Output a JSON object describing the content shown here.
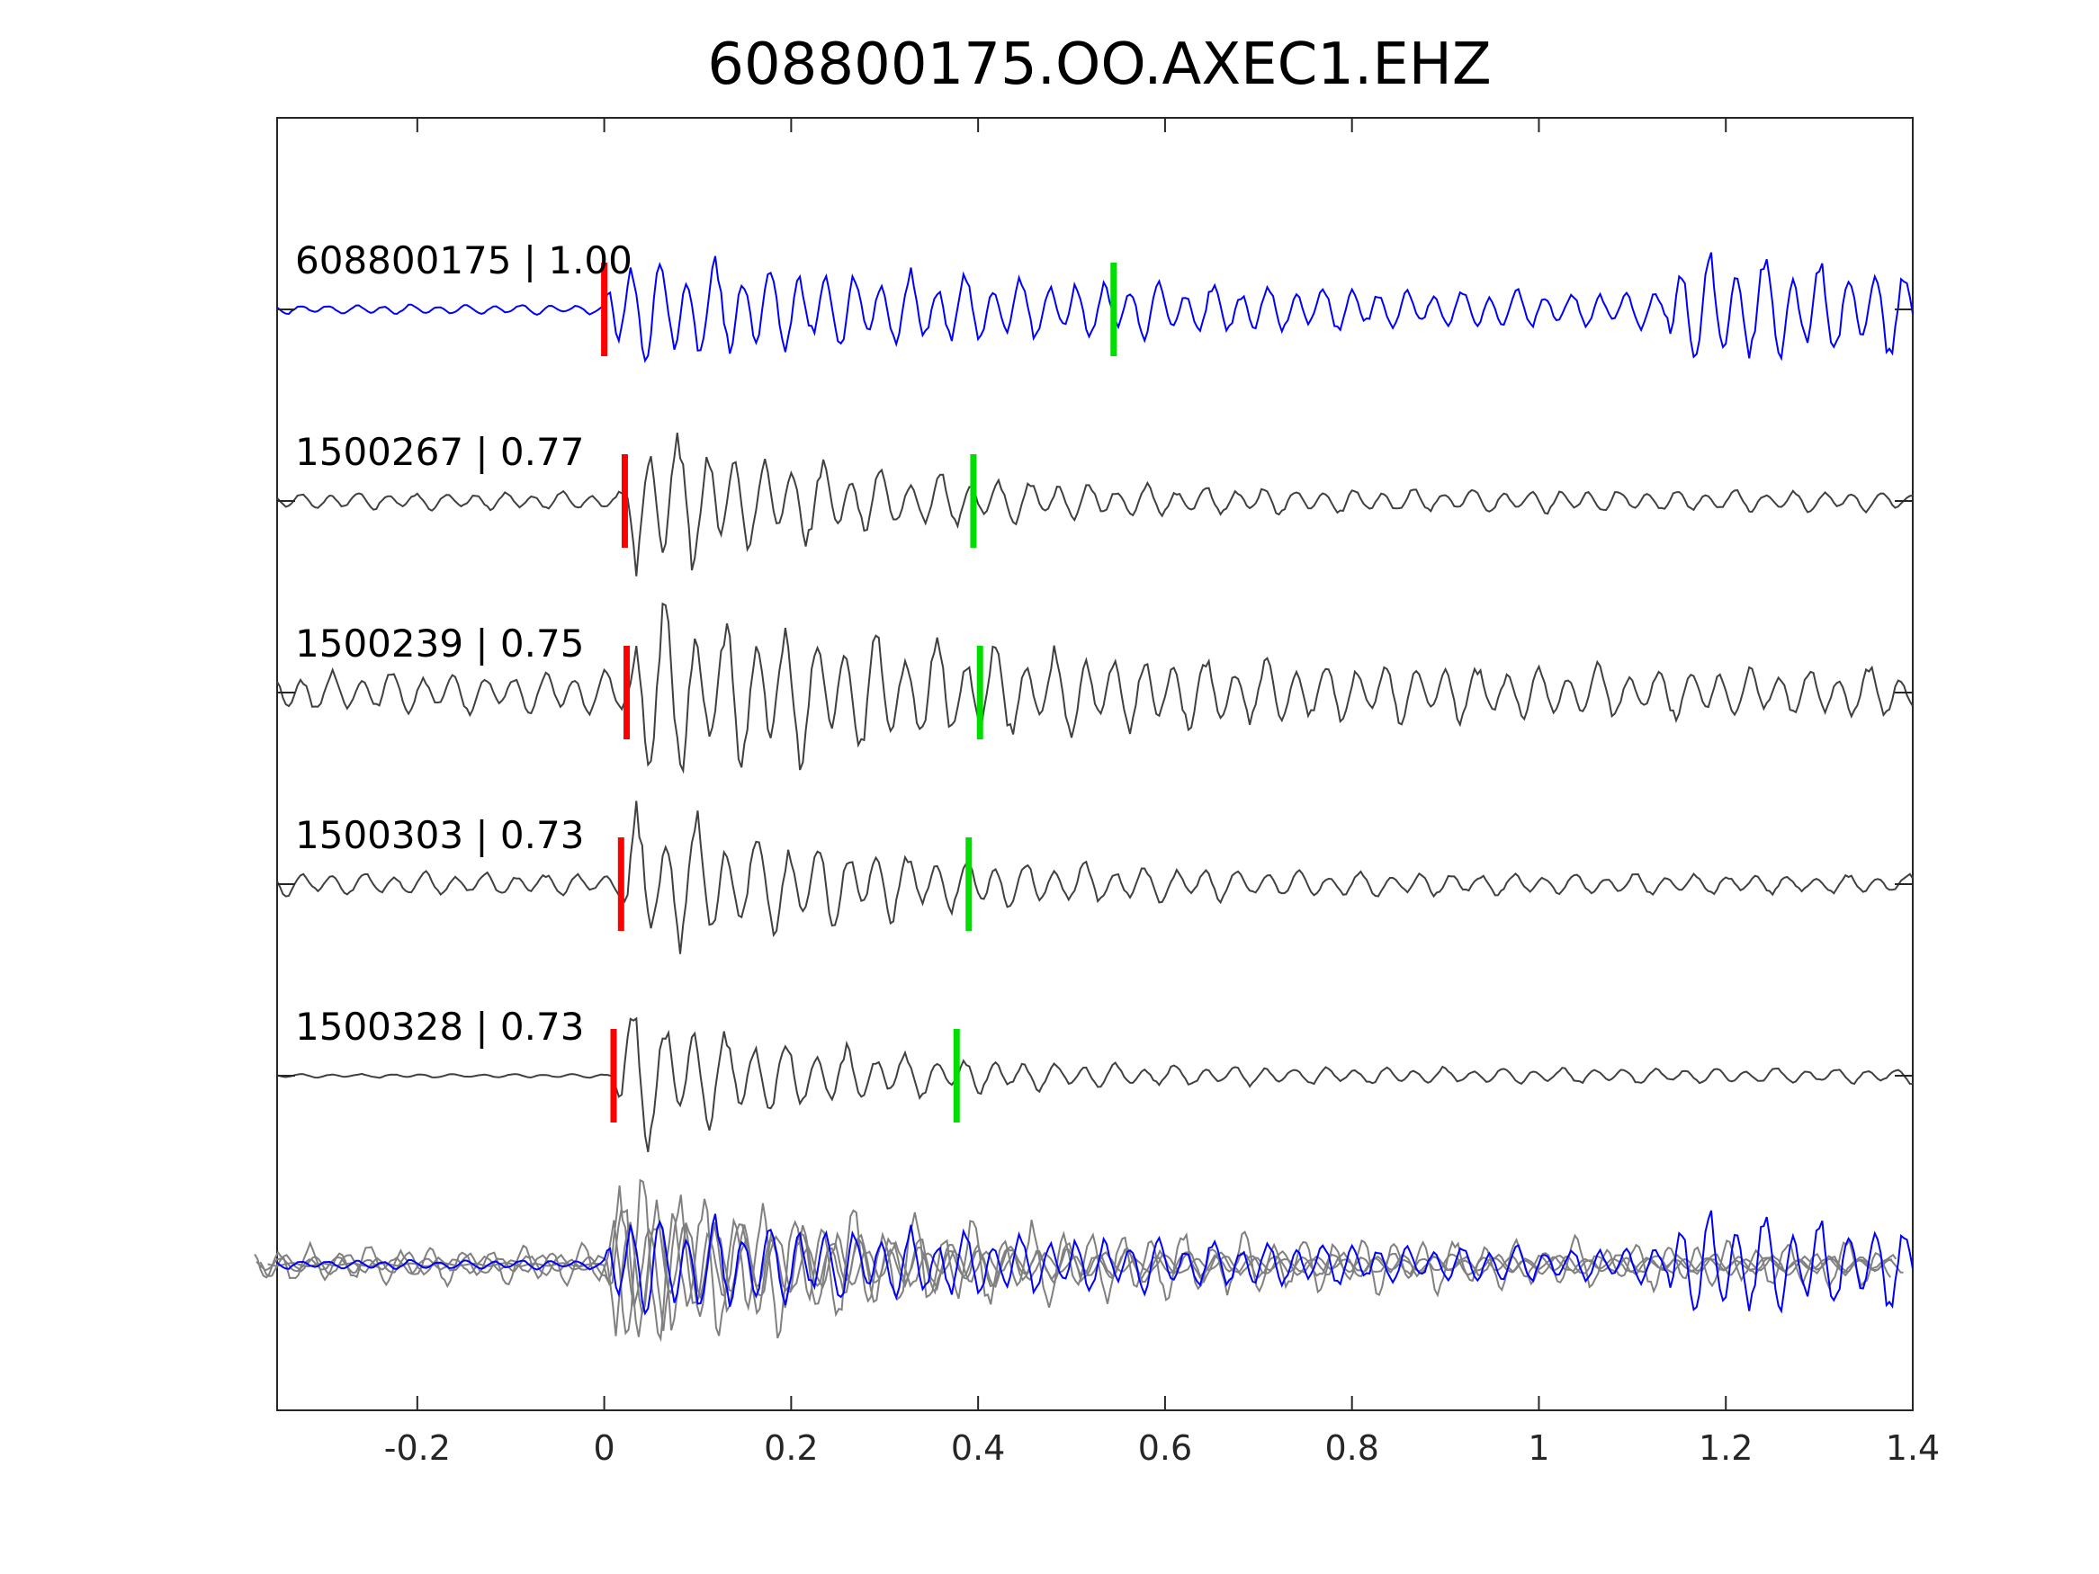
{
  "chart_data": {
    "type": "line",
    "title": "608800175.OO.AXEC1.EHZ",
    "xlabel": "",
    "ylabel": "",
    "xlim": [
      -0.35,
      1.4
    ],
    "xticks": [
      -0.2,
      0,
      0.2,
      0.4,
      0.6,
      0.8,
      1,
      1.2,
      1.4
    ],
    "xtick_labels": [
      "-0.2",
      "0",
      "0.2",
      "0.4",
      "0.6",
      "0.8",
      "1",
      "1.2",
      "1.4"
    ],
    "grid": false,
    "legend": "none",
    "colors": {
      "template": "#0000ff",
      "match": "#404040",
      "overlay_match": "#808080",
      "p_pick": "#ff0000",
      "s_pick": "#00dd00",
      "axes": "#262626"
    },
    "series": [
      {
        "label": "608800175 | 1.00",
        "p_pick": 0.0,
        "s_pick": 0.545,
        "role": "template"
      },
      {
        "label": "1500267 | 0.77",
        "p_pick": 0.022,
        "s_pick": 0.395,
        "role": "match"
      },
      {
        "label": "1500239 | 0.75",
        "p_pick": 0.024,
        "s_pick": 0.402,
        "role": "match"
      },
      {
        "label": "1500303 | 0.73",
        "p_pick": 0.018,
        "s_pick": 0.39,
        "role": "match"
      },
      {
        "label": "1500328 | 0.73",
        "p_pick": 0.01,
        "s_pick": 0.377,
        "role": "match"
      }
    ],
    "overlay": {
      "description_hidden": true
    }
  }
}
